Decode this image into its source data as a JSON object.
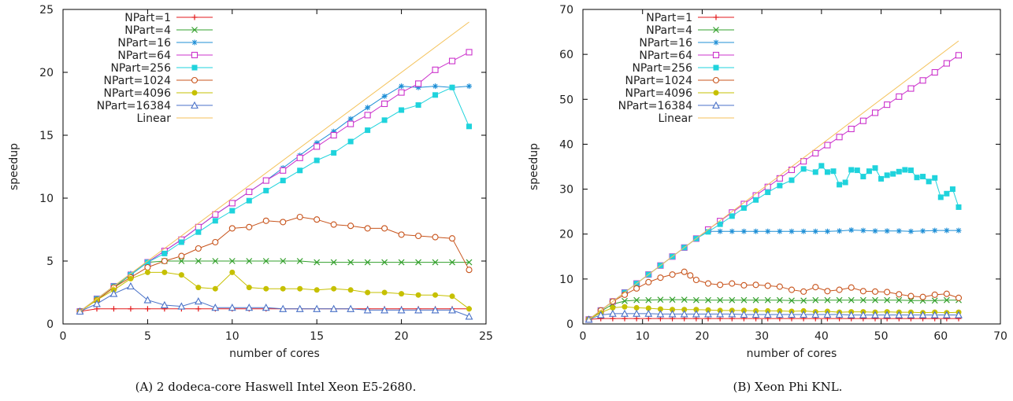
{
  "chart_data": [
    {
      "type": "line",
      "caption": "(A) 2 dodeca-core Haswell Intel Xeon E5-2680.",
      "xlabel": "number of cores",
      "ylabel": "speedup",
      "xlim": [
        0,
        25
      ],
      "ylim": [
        0,
        25
      ],
      "xticks": [
        0,
        5,
        10,
        15,
        20,
        25
      ],
      "yticks": [
        0,
        5,
        10,
        15,
        20,
        25
      ],
      "grid": false,
      "legend_position": "top-left",
      "series": [
        {
          "name": "NPart=1",
          "color": "#e31a1c",
          "marker": "plus",
          "x": [
            1,
            2,
            3,
            4,
            5,
            6,
            7,
            8,
            9,
            10,
            11,
            12,
            13,
            14,
            15,
            16,
            17,
            18,
            19,
            20,
            21,
            22,
            23,
            24
          ],
          "y": [
            1,
            1.2,
            1.2,
            1.2,
            1.2,
            1.2,
            1.2,
            1.2,
            1.2,
            1.2,
            1.2,
            1.2,
            1.2,
            1.2,
            1.2,
            1.2,
            1.2,
            1.2,
            1.2,
            1.2,
            1.2,
            1.2,
            1.2,
            1.2
          ]
        },
        {
          "name": "NPart=4",
          "color": "#33a02c",
          "marker": "x",
          "x": [
            1,
            2,
            3,
            4,
            5,
            6,
            7,
            8,
            9,
            10,
            11,
            12,
            13,
            14,
            15,
            16,
            17,
            18,
            19,
            20,
            21,
            22,
            23,
            24
          ],
          "y": [
            1,
            1.9,
            2.9,
            3.9,
            4.9,
            5,
            5,
            5,
            5,
            5,
            5,
            5,
            5,
            5,
            4.9,
            4.9,
            4.9,
            4.9,
            4.9,
            4.9,
            4.9,
            4.9,
            4.9,
            4.9
          ]
        },
        {
          "name": "NPart=16",
          "color": "#1f8fd6",
          "marker": "star",
          "x": [
            1,
            2,
            3,
            4,
            5,
            6,
            7,
            8,
            9,
            10,
            11,
            12,
            13,
            14,
            15,
            16,
            17,
            18,
            19,
            20,
            21,
            22,
            23,
            24
          ],
          "y": [
            1,
            2,
            3,
            4,
            4.9,
            5.8,
            6.7,
            7.7,
            8.7,
            9.6,
            10.5,
            11.4,
            12.4,
            13.4,
            14.4,
            15.3,
            16.3,
            17.2,
            18.1,
            18.9,
            18.8,
            18.9,
            18.8,
            18.9
          ]
        },
        {
          "name": "NPart=64",
          "color": "#cc33cc",
          "marker": "square-open",
          "x": [
            1,
            2,
            3,
            4,
            5,
            6,
            7,
            8,
            9,
            10,
            11,
            12,
            13,
            14,
            15,
            16,
            17,
            18,
            19,
            20,
            21,
            22,
            23,
            24
          ],
          "y": [
            1,
            2,
            3,
            3.9,
            4.9,
            5.8,
            6.7,
            7.7,
            8.7,
            9.6,
            10.5,
            11.4,
            12.2,
            13.2,
            14.1,
            15,
            15.9,
            16.6,
            17.5,
            18.4,
            19.1,
            20.2,
            20.9,
            21.6
          ]
        },
        {
          "name": "NPart=256",
          "color": "#1fd3dc",
          "marker": "square-filled",
          "x": [
            1,
            2,
            3,
            4,
            5,
            6,
            7,
            8,
            9,
            10,
            11,
            12,
            13,
            14,
            15,
            16,
            17,
            18,
            19,
            20,
            21,
            22,
            23,
            24
          ],
          "y": [
            1,
            2,
            3,
            3.9,
            4.9,
            5.6,
            6.5,
            7.3,
            8.2,
            9,
            9.8,
            10.6,
            11.4,
            12.2,
            13,
            13.6,
            14.5,
            15.4,
            16.2,
            17,
            17.4,
            18.2,
            18.8,
            15.7
          ]
        },
        {
          "name": "NPart=1024",
          "color": "#c8541c",
          "marker": "circle-open",
          "x": [
            1,
            2,
            3,
            4,
            5,
            6,
            7,
            8,
            9,
            10,
            11,
            12,
            13,
            14,
            15,
            16,
            17,
            18,
            19,
            20,
            21,
            22,
            23,
            24
          ],
          "y": [
            1,
            1.9,
            2.9,
            3.7,
            4.5,
            5,
            5.4,
            6,
            6.5,
            7.6,
            7.7,
            8.2,
            8.1,
            8.5,
            8.3,
            7.9,
            7.8,
            7.6,
            7.6,
            7.1,
            7,
            6.9,
            6.8,
            4.3
          ]
        },
        {
          "name": "NPart=4096",
          "color": "#c6c000",
          "marker": "circle-filled",
          "x": [
            1,
            2,
            3,
            4,
            5,
            6,
            7,
            8,
            9,
            10,
            11,
            12,
            13,
            14,
            15,
            16,
            17,
            18,
            19,
            20,
            21,
            22,
            23,
            24
          ],
          "y": [
            1,
            1.9,
            2.7,
            3.6,
            4.1,
            4.1,
            3.9,
            2.9,
            2.8,
            4.1,
            2.9,
            2.8,
            2.8,
            2.8,
            2.7,
            2.8,
            2.7,
            2.5,
            2.5,
            2.4,
            2.3,
            2.3,
            2.2,
            1.2
          ]
        },
        {
          "name": "NPart=16384",
          "color": "#4a72c8",
          "marker": "triangle-open",
          "x": [
            1,
            2,
            3,
            4,
            5,
            6,
            7,
            8,
            9,
            10,
            11,
            12,
            13,
            14,
            15,
            16,
            17,
            18,
            19,
            20,
            21,
            22,
            23,
            24
          ],
          "y": [
            1,
            1.6,
            2.4,
            3,
            1.9,
            1.5,
            1.4,
            1.8,
            1.3,
            1.3,
            1.3,
            1.3,
            1.2,
            1.2,
            1.2,
            1.2,
            1.2,
            1.1,
            1.1,
            1.1,
            1.1,
            1.1,
            1.1,
            0.6
          ]
        },
        {
          "name": "Linear",
          "color": "#f4c25a",
          "marker": "none",
          "x": [
            1,
            24
          ],
          "y": [
            1,
            24
          ]
        }
      ]
    },
    {
      "type": "line",
      "caption": "(B) Xeon Phi KNL.",
      "xlabel": "number of cores",
      "ylabel": "speedup",
      "xlim": [
        0,
        70
      ],
      "ylim": [
        0,
        70
      ],
      "xticks": [
        0,
        10,
        20,
        30,
        40,
        50,
        60,
        70
      ],
      "yticks": [
        0,
        10,
        20,
        30,
        40,
        50,
        60,
        70
      ],
      "grid": false,
      "legend_position": "top-left",
      "series": [
        {
          "name": "NPart=1",
          "color": "#e31a1c",
          "marker": "plus",
          "x": [
            1,
            3,
            5,
            7,
            9,
            11,
            13,
            15,
            17,
            19,
            21,
            23,
            25,
            27,
            29,
            31,
            33,
            35,
            37,
            39,
            41,
            43,
            45,
            47,
            49,
            51,
            53,
            55,
            57,
            59,
            61,
            63
          ],
          "y": [
            1,
            1.2,
            1.2,
            1.2,
            1.2,
            1.2,
            1.2,
            1.2,
            1.2,
            1.2,
            1.2,
            1.2,
            1.2,
            1.2,
            1.2,
            1.2,
            1.2,
            1.2,
            1.2,
            1.2,
            1.2,
            1.2,
            1.2,
            1.2,
            1.2,
            1.2,
            1.2,
            1.2,
            1.2,
            1.2,
            1.2,
            1.2
          ]
        },
        {
          "name": "NPart=4",
          "color": "#33a02c",
          "marker": "x",
          "x": [
            1,
            3,
            5,
            7,
            9,
            11,
            13,
            15,
            17,
            19,
            21,
            23,
            25,
            27,
            29,
            31,
            33,
            35,
            37,
            39,
            41,
            43,
            45,
            47,
            49,
            51,
            53,
            55,
            57,
            59,
            61,
            63
          ],
          "y": [
            1,
            2.8,
            4.4,
            5.1,
            5.3,
            5.3,
            5.4,
            5.4,
            5.4,
            5.3,
            5.3,
            5.3,
            5.3,
            5.3,
            5.3,
            5.3,
            5.3,
            5.2,
            5.2,
            5.3,
            5.3,
            5.3,
            5.3,
            5.3,
            5.3,
            5.3,
            5.3,
            5.2,
            5.2,
            5.2,
            5.3,
            5.3
          ]
        },
        {
          "name": "NPart=16",
          "color": "#1f8fd6",
          "marker": "star",
          "x": [
            1,
            3,
            5,
            7,
            9,
            11,
            13,
            15,
            17,
            19,
            21,
            23,
            25,
            27,
            29,
            31,
            33,
            35,
            37,
            39,
            41,
            43,
            45,
            47,
            49,
            51,
            53,
            55,
            57,
            59,
            61,
            63
          ],
          "y": [
            1,
            3,
            5,
            7,
            9,
            11,
            13,
            15,
            17,
            19,
            20.6,
            20.6,
            20.6,
            20.6,
            20.6,
            20.6,
            20.6,
            20.6,
            20.6,
            20.6,
            20.6,
            20.7,
            20.9,
            20.8,
            20.7,
            20.7,
            20.7,
            20.6,
            20.7,
            20.8,
            20.8,
            20.8
          ]
        },
        {
          "name": "NPart=64",
          "color": "#cc33cc",
          "marker": "square-open",
          "x": [
            1,
            3,
            5,
            7,
            9,
            11,
            13,
            15,
            17,
            19,
            21,
            23,
            25,
            27,
            29,
            31,
            33,
            35,
            37,
            39,
            41,
            43,
            45,
            47,
            49,
            51,
            53,
            55,
            57,
            59,
            61,
            63
          ],
          "y": [
            1,
            3,
            5,
            7,
            9,
            11,
            13,
            15,
            17,
            19,
            21,
            22.9,
            24.8,
            26.7,
            28.6,
            30.5,
            32.4,
            34.3,
            36.2,
            38,
            39.8,
            41.6,
            43.4,
            45.2,
            47,
            48.8,
            50.6,
            52.4,
            54.2,
            56,
            58,
            59.8
          ]
        },
        {
          "name": "NPart=256",
          "color": "#1fd3dc",
          "marker": "square-filled",
          "x": [
            1,
            3,
            5,
            7,
            9,
            11,
            13,
            15,
            17,
            19,
            21,
            23,
            25,
            27,
            29,
            31,
            33,
            35,
            37,
            39,
            40,
            41,
            42,
            43,
            44,
            45,
            46,
            47,
            48,
            49,
            50,
            51,
            52,
            53,
            54,
            55,
            56,
            57,
            58,
            59,
            60,
            61,
            62,
            63
          ],
          "y": [
            1,
            3,
            5,
            7,
            9,
            11,
            13,
            15,
            17,
            19,
            20.5,
            22.2,
            24,
            25.8,
            27.6,
            29.3,
            30.8,
            32,
            34.5,
            33.8,
            35.2,
            33.8,
            34,
            31,
            31.5,
            34.3,
            34.2,
            32.8,
            34,
            34.7,
            32.3,
            33.1,
            33.4,
            33.9,
            34.3,
            34.2,
            32.6,
            32.8,
            31.7,
            32.5,
            28.2,
            29,
            30,
            26
          ]
        },
        {
          "name": "NPart=1024",
          "color": "#c8541c",
          "marker": "circle-open",
          "x": [
            1,
            3,
            5,
            7,
            9,
            11,
            13,
            15,
            17,
            18,
            19,
            21,
            23,
            25,
            27,
            29,
            31,
            33,
            35,
            37,
            39,
            41,
            43,
            45,
            47,
            49,
            51,
            53,
            55,
            57,
            59,
            61,
            63
          ],
          "y": [
            1,
            3,
            5,
            6.5,
            7.9,
            9.3,
            10.3,
            11,
            11.6,
            10.8,
            9.8,
            9,
            8.7,
            9,
            8.6,
            8.7,
            8.5,
            8.3,
            7.6,
            7.2,
            8.2,
            7.3,
            7.6,
            8.1,
            7.3,
            7.2,
            7.1,
            6.6,
            6.2,
            6,
            6.5,
            6.7,
            5.8
          ]
        },
        {
          "name": "NPart=4096",
          "color": "#c6c000",
          "marker": "circle-filled",
          "x": [
            1,
            3,
            5,
            7,
            9,
            11,
            13,
            15,
            17,
            19,
            21,
            23,
            25,
            27,
            29,
            31,
            33,
            35,
            37,
            39,
            41,
            43,
            45,
            47,
            49,
            51,
            53,
            55,
            57,
            59,
            61,
            63
          ],
          "y": [
            1,
            2.5,
            3.6,
            3.8,
            3.6,
            3.5,
            3.3,
            3.2,
            3.2,
            3.2,
            3.1,
            3,
            3,
            3,
            2.9,
            2.9,
            2.9,
            2.8,
            2.9,
            2.7,
            2.8,
            2.6,
            2.7,
            2.7,
            2.6,
            2.7,
            2.6,
            2.6,
            2.5,
            2.6,
            2.5,
            2.6
          ]
        },
        {
          "name": "NPart=16384",
          "color": "#4a72c8",
          "marker": "triangle-open",
          "x": [
            1,
            3,
            5,
            7,
            9,
            11,
            13,
            15,
            17,
            19,
            21,
            23,
            25,
            27,
            29,
            31,
            33,
            35,
            37,
            39,
            41,
            43,
            45,
            47,
            49,
            51,
            53,
            55,
            57,
            59,
            61,
            63
          ],
          "y": [
            1,
            2,
            2.3,
            2.3,
            2.3,
            2.3,
            2.2,
            2.2,
            2.2,
            2.2,
            2.2,
            2.2,
            2.2,
            2.1,
            2.1,
            2.1,
            2.1,
            2.1,
            2.1,
            2.1,
            2.1,
            2.1,
            2,
            2,
            2,
            2,
            2,
            2,
            2,
            2,
            2,
            2
          ]
        },
        {
          "name": "Linear",
          "color": "#f4c25a",
          "marker": "none",
          "x": [
            1,
            63
          ],
          "y": [
            1,
            63
          ]
        }
      ]
    }
  ]
}
